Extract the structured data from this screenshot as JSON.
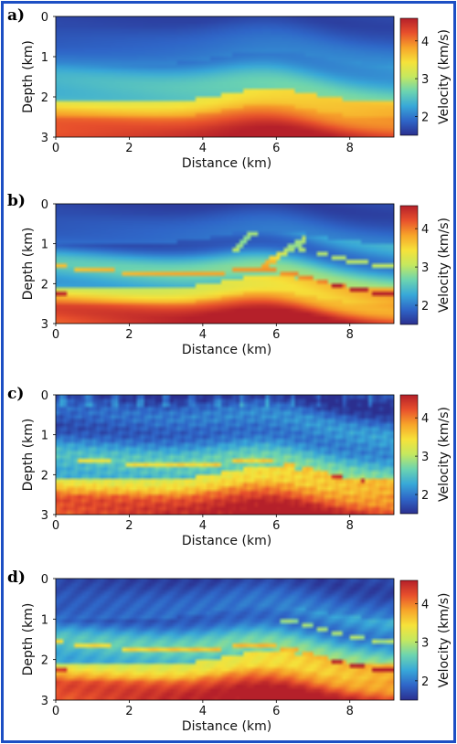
{
  "colorbar_colors": [
    "#2b2f8f",
    "#2f66c8",
    "#38a8d8",
    "#6cd4b0",
    "#c4e860",
    "#f6e23a",
    "#f7a42a",
    "#e8502c",
    "#b5202a"
  ],
  "chart_data": [
    {
      "type": "heatmap",
      "panel_label": "a)",
      "xlabel": "Distance (km)",
      "ylabel": "Depth (km)",
      "colorbar_label": "Velocity (km/s)",
      "xlim": [
        0,
        9.2
      ],
      "ylim": [
        3,
        0
      ],
      "xticks": [
        "0",
        "2",
        "4",
        "6",
        "8"
      ],
      "yticks": [
        "0",
        "1",
        "2",
        "3"
      ],
      "colorbar_range": [
        1.5,
        4.6
      ],
      "colorbar_ticks": [
        "4",
        "3",
        "2"
      ],
      "grid": false,
      "variant": "smooth"
    },
    {
      "type": "heatmap",
      "panel_label": "b)",
      "xlabel": "Distance (km)",
      "ylabel": "Depth (km)",
      "colorbar_label": "Velocity (km/s)",
      "xlim": [
        0,
        9.2
      ],
      "ylim": [
        3,
        0
      ],
      "xticks": [
        "0",
        "2",
        "4",
        "6",
        "8"
      ],
      "yticks": [
        "0",
        "1",
        "2",
        "3"
      ],
      "colorbar_range": [
        1.5,
        4.6
      ],
      "colorbar_ticks": [
        "4",
        "3",
        "2"
      ],
      "grid": false,
      "variant": "true"
    },
    {
      "type": "heatmap",
      "panel_label": "c)",
      "xlabel": "Distance (km)",
      "ylabel": "Depth (km)",
      "colorbar_label": "Velocity (km/s)",
      "xlim": [
        0,
        9.2
      ],
      "ylim": [
        3,
        0
      ],
      "xticks": [
        "0",
        "2",
        "4",
        "6",
        "8"
      ],
      "yticks": [
        "0",
        "1",
        "2",
        "3"
      ],
      "colorbar_range": [
        1.5,
        4.6
      ],
      "colorbar_ticks": [
        "4",
        "3",
        "2"
      ],
      "grid": false,
      "variant": "noisy"
    },
    {
      "type": "heatmap",
      "panel_label": "d)",
      "xlabel": "Distance (km)",
      "ylabel": "Depth (km)",
      "colorbar_label": "Velocity (km/s)",
      "xlim": [
        0,
        9.2
      ],
      "ylim": [
        3,
        0
      ],
      "xticks": [
        "0",
        "2",
        "4",
        "6",
        "8"
      ],
      "yticks": [
        "0",
        "1",
        "2",
        "3"
      ],
      "colorbar_range": [
        1.5,
        4.6
      ],
      "colorbar_ticks": [
        "4",
        "3",
        "2"
      ],
      "grid": false,
      "variant": "inverted"
    }
  ]
}
